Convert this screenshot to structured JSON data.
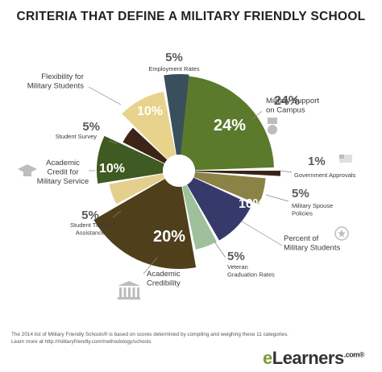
{
  "title": "CRITERIA THAT DEFINE A MILITARY FRIENDLY SCHOOL",
  "footnote": {
    "line1": "The 2014 list of Military Friendly Schools® is based on scores determined by compiling and weighing these 11 categories.",
    "line2": "Learn more at http://militaryfriendly.com/methodology/schools"
  },
  "brand": {
    "prefix": "e",
    "name": "Learners",
    "tm": ".com®"
  },
  "chart_data": {
    "type": "pie",
    "title": "CRITERIA THAT DEFINE A MILITARY FRIENDLY SCHOOL",
    "slices": [
      {
        "label": "Military Support on Campus",
        "value": 24,
        "display": "24%",
        "color": "#5b7a2c"
      },
      {
        "label": "Government Approvals",
        "value": 1,
        "display": "1%",
        "color": "#3a2418"
      },
      {
        "label": "Military Spouse Policies",
        "value": 5,
        "display": "5%",
        "color": "#8b8245"
      },
      {
        "label": "Percent of Military Students",
        "value": 10,
        "display": "10%",
        "color": "#363a6b"
      },
      {
        "label": "Veteran Graduation Rates",
        "value": 5,
        "display": "5%",
        "color": "#9ec09a"
      },
      {
        "label": "Academic Credibility",
        "value": 20,
        "display": "20%",
        "color": "#4f3f1b"
      },
      {
        "label": "Student Tuition Assistance",
        "value": 5,
        "display": "5%",
        "color": "#e4cf8e"
      },
      {
        "label": "Academic Credit for Military Service",
        "value": 10,
        "display": "10%",
        "color": "#3f5a22"
      },
      {
        "label": "Student Survey",
        "value": 5,
        "display": "5%",
        "color": "#3d2417"
      },
      {
        "label": "Flexibility for Military Students",
        "value": 10,
        "display": "10%",
        "color": "#e8d38c"
      },
      {
        "label": "Employment Rates",
        "value": 5,
        "display": "5%",
        "color": "#3a4f5c"
      }
    ],
    "callouts": [
      {
        "pct": "24%",
        "lines": [
          "Military Support",
          "on Campus"
        ]
      },
      {
        "pct": "1%",
        "lines": [
          "Government Approvals"
        ]
      },
      {
        "pct": "5%",
        "lines": [
          "Military Spouse",
          "Policies"
        ]
      },
      {
        "pct": "",
        "lines": [
          "Percent of",
          "Military Students"
        ]
      },
      {
        "pct": "5%",
        "lines": [
          "Veteran",
          "Graduation Rates"
        ]
      },
      {
        "pct": "",
        "lines": [
          "Academic",
          "Credibility"
        ]
      },
      {
        "pct": "5%",
        "lines": [
          "Student Tuition",
          "Assistance"
        ]
      },
      {
        "pct": "",
        "lines": [
          "Academic",
          "Credit for",
          "Military Service"
        ]
      },
      {
        "pct": "5%",
        "lines": [
          "Student Survey"
        ]
      },
      {
        "pct": "",
        "lines": [
          "Flexibility for",
          "Military Students"
        ]
      },
      {
        "pct": "5%",
        "lines": [
          "Employment Rates"
        ]
      }
    ],
    "inner_labels": [
      "24%",
      "",
      "",
      "10%",
      "",
      "20%",
      "",
      "10%",
      "",
      "10%",
      ""
    ],
    "label_color": "#3a3a3a",
    "pct_color": "#5b5b5b",
    "icons": [
      "medal-icon",
      "flag-icon",
      "star-icon",
      "graduation-cap-icon",
      "building-columns-icon"
    ]
  }
}
